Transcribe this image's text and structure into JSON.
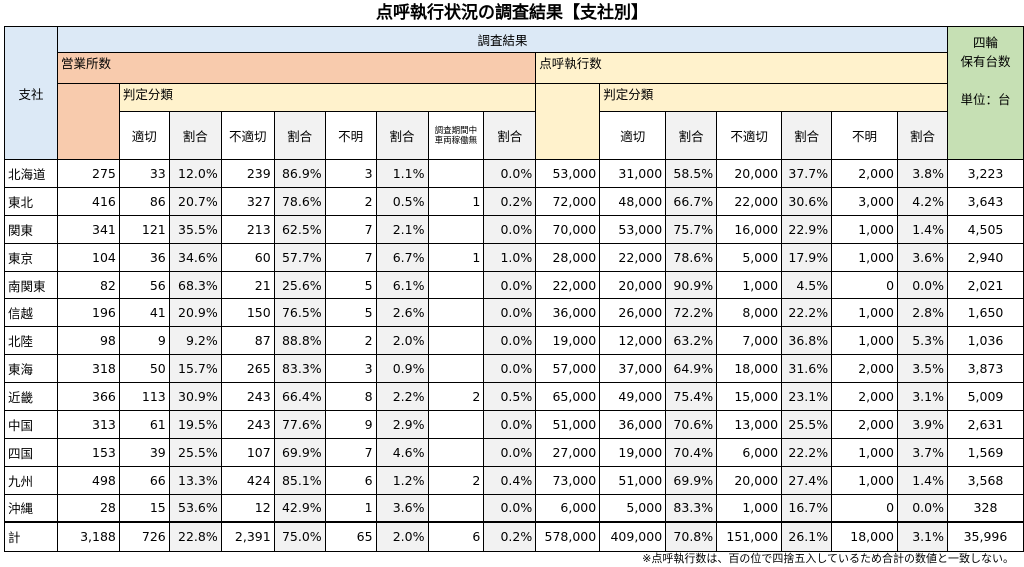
{
  "title": "点呼執行状況の調査結果【支社別】",
  "headers": {
    "branch": "支社",
    "survey_results": "調査結果",
    "offices": "営業所数",
    "judgment": "判定分類",
    "rollcall_count": "点呼執行数",
    "vehicles_line1": "四輪",
    "vehicles_line2": "保有台数",
    "unit": "単位：台",
    "appropriate": "適切",
    "ratio": "割合",
    "inappropriate": "不適切",
    "unknown": "不明",
    "no_vehicle_line1": "調査期間中",
    "no_vehicle_line2": "車両稼働無"
  },
  "rows": [
    {
      "branch": "北海道",
      "offices": "275",
      "o_ok": "33",
      "o_ok_pct": "12.0%",
      "o_ng": "239",
      "o_ng_pct": "86.9%",
      "o_unk": "3",
      "o_unk_pct": "1.1%",
      "o_idle": "",
      "o_idle_pct": "0.0%",
      "calls": "53,000",
      "c_ok": "31,000",
      "c_ok_pct": "58.5%",
      "c_ng": "20,000",
      "c_ng_pct": "37.7%",
      "c_unk": "2,000",
      "c_unk_pct": "3.8%",
      "vehicles": "3,223"
    },
    {
      "branch": "東北",
      "offices": "416",
      "o_ok": "86",
      "o_ok_pct": "20.7%",
      "o_ng": "327",
      "o_ng_pct": "78.6%",
      "o_unk": "2",
      "o_unk_pct": "0.5%",
      "o_idle": "1",
      "o_idle_pct": "0.2%",
      "calls": "72,000",
      "c_ok": "48,000",
      "c_ok_pct": "66.7%",
      "c_ng": "22,000",
      "c_ng_pct": "30.6%",
      "c_unk": "3,000",
      "c_unk_pct": "4.2%",
      "vehicles": "3,643"
    },
    {
      "branch": "関東",
      "offices": "341",
      "o_ok": "121",
      "o_ok_pct": "35.5%",
      "o_ng": "213",
      "o_ng_pct": "62.5%",
      "o_unk": "7",
      "o_unk_pct": "2.1%",
      "o_idle": "",
      "o_idle_pct": "0.0%",
      "calls": "70,000",
      "c_ok": "53,000",
      "c_ok_pct": "75.7%",
      "c_ng": "16,000",
      "c_ng_pct": "22.9%",
      "c_unk": "1,000",
      "c_unk_pct": "1.4%",
      "vehicles": "4,505"
    },
    {
      "branch": "東京",
      "offices": "104",
      "o_ok": "36",
      "o_ok_pct": "34.6%",
      "o_ng": "60",
      "o_ng_pct": "57.7%",
      "o_unk": "7",
      "o_unk_pct": "6.7%",
      "o_idle": "1",
      "o_idle_pct": "1.0%",
      "calls": "28,000",
      "c_ok": "22,000",
      "c_ok_pct": "78.6%",
      "c_ng": "5,000",
      "c_ng_pct": "17.9%",
      "c_unk": "1,000",
      "c_unk_pct": "3.6%",
      "vehicles": "2,940"
    },
    {
      "branch": "南関東",
      "offices": "82",
      "o_ok": "56",
      "o_ok_pct": "68.3%",
      "o_ng": "21",
      "o_ng_pct": "25.6%",
      "o_unk": "5",
      "o_unk_pct": "6.1%",
      "o_idle": "",
      "o_idle_pct": "0.0%",
      "calls": "22,000",
      "c_ok": "20,000",
      "c_ok_pct": "90.9%",
      "c_ng": "1,000",
      "c_ng_pct": "4.5%",
      "c_unk": "0",
      "c_unk_pct": "0.0%",
      "vehicles": "2,021"
    },
    {
      "branch": "信越",
      "offices": "196",
      "o_ok": "41",
      "o_ok_pct": "20.9%",
      "o_ng": "150",
      "o_ng_pct": "76.5%",
      "o_unk": "5",
      "o_unk_pct": "2.6%",
      "o_idle": "",
      "o_idle_pct": "0.0%",
      "calls": "36,000",
      "c_ok": "26,000",
      "c_ok_pct": "72.2%",
      "c_ng": "8,000",
      "c_ng_pct": "22.2%",
      "c_unk": "1,000",
      "c_unk_pct": "2.8%",
      "vehicles": "1,650"
    },
    {
      "branch": "北陸",
      "offices": "98",
      "o_ok": "9",
      "o_ok_pct": "9.2%",
      "o_ng": "87",
      "o_ng_pct": "88.8%",
      "o_unk": "2",
      "o_unk_pct": "2.0%",
      "o_idle": "",
      "o_idle_pct": "0.0%",
      "calls": "19,000",
      "c_ok": "12,000",
      "c_ok_pct": "63.2%",
      "c_ng": "7,000",
      "c_ng_pct": "36.8%",
      "c_unk": "1,000",
      "c_unk_pct": "5.3%",
      "vehicles": "1,036"
    },
    {
      "branch": "東海",
      "offices": "318",
      "o_ok": "50",
      "o_ok_pct": "15.7%",
      "o_ng": "265",
      "o_ng_pct": "83.3%",
      "o_unk": "3",
      "o_unk_pct": "0.9%",
      "o_idle": "",
      "o_idle_pct": "0.0%",
      "calls": "57,000",
      "c_ok": "37,000",
      "c_ok_pct": "64.9%",
      "c_ng": "18,000",
      "c_ng_pct": "31.6%",
      "c_unk": "2,000",
      "c_unk_pct": "3.5%",
      "vehicles": "3,873"
    },
    {
      "branch": "近畿",
      "offices": "366",
      "o_ok": "113",
      "o_ok_pct": "30.9%",
      "o_ng": "243",
      "o_ng_pct": "66.4%",
      "o_unk": "8",
      "o_unk_pct": "2.2%",
      "o_idle": "2",
      "o_idle_pct": "0.5%",
      "calls": "65,000",
      "c_ok": "49,000",
      "c_ok_pct": "75.4%",
      "c_ng": "15,000",
      "c_ng_pct": "23.1%",
      "c_unk": "2,000",
      "c_unk_pct": "3.1%",
      "vehicles": "5,009"
    },
    {
      "branch": "中国",
      "offices": "313",
      "o_ok": "61",
      "o_ok_pct": "19.5%",
      "o_ng": "243",
      "o_ng_pct": "77.6%",
      "o_unk": "9",
      "o_unk_pct": "2.9%",
      "o_idle": "",
      "o_idle_pct": "0.0%",
      "calls": "51,000",
      "c_ok": "36,000",
      "c_ok_pct": "70.6%",
      "c_ng": "13,000",
      "c_ng_pct": "25.5%",
      "c_unk": "2,000",
      "c_unk_pct": "3.9%",
      "vehicles": "2,631"
    },
    {
      "branch": "四国",
      "offices": "153",
      "o_ok": "39",
      "o_ok_pct": "25.5%",
      "o_ng": "107",
      "o_ng_pct": "69.9%",
      "o_unk": "7",
      "o_unk_pct": "4.6%",
      "o_idle": "",
      "o_idle_pct": "0.0%",
      "calls": "27,000",
      "c_ok": "19,000",
      "c_ok_pct": "70.4%",
      "c_ng": "6,000",
      "c_ng_pct": "22.2%",
      "c_unk": "1,000",
      "c_unk_pct": "3.7%",
      "vehicles": "1,569"
    },
    {
      "branch": "九州",
      "offices": "498",
      "o_ok": "66",
      "o_ok_pct": "13.3%",
      "o_ng": "424",
      "o_ng_pct": "85.1%",
      "o_unk": "6",
      "o_unk_pct": "1.2%",
      "o_idle": "2",
      "o_idle_pct": "0.4%",
      "calls": "73,000",
      "c_ok": "51,000",
      "c_ok_pct": "69.9%",
      "c_ng": "20,000",
      "c_ng_pct": "27.4%",
      "c_unk": "1,000",
      "c_unk_pct": "1.4%",
      "vehicles": "3,568"
    },
    {
      "branch": "沖縄",
      "offices": "28",
      "o_ok": "15",
      "o_ok_pct": "53.6%",
      "o_ng": "12",
      "o_ng_pct": "42.9%",
      "o_unk": "1",
      "o_unk_pct": "3.6%",
      "o_idle": "",
      "o_idle_pct": "0.0%",
      "calls": "6,000",
      "c_ok": "5,000",
      "c_ok_pct": "83.3%",
      "c_ng": "1,000",
      "c_ng_pct": "16.7%",
      "c_unk": "0",
      "c_unk_pct": "0.0%",
      "vehicles": "328"
    }
  ],
  "total": {
    "branch": "計",
    "offices": "3,188",
    "o_ok": "726",
    "o_ok_pct": "22.8%",
    "o_ng": "2,391",
    "o_ng_pct": "75.0%",
    "o_unk": "65",
    "o_unk_pct": "2.0%",
    "o_idle": "6",
    "o_idle_pct": "0.2%",
    "calls": "578,000",
    "c_ok": "409,000",
    "c_ok_pct": "70.8%",
    "c_ng": "151,000",
    "c_ng_pct": "26.1%",
    "c_unk": "18,000",
    "c_unk_pct": "3.1%",
    "vehicles": "35,996"
  },
  "note": "※点呼執行数は、百の位で四捨五入しているため合計の数値と一致しない。"
}
